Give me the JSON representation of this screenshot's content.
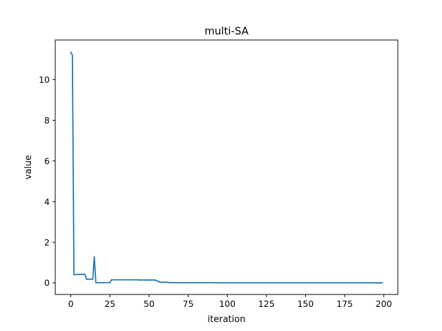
{
  "chart_data": {
    "type": "line",
    "title": "multi-SA",
    "xlabel": "iteration",
    "ylabel": "value",
    "xlim": [
      -9.95,
      208.95
    ],
    "ylim": [
      -0.57,
      11.95
    ],
    "xticks": [
      0,
      25,
      50,
      75,
      100,
      125,
      150,
      175,
      200
    ],
    "yticks": [
      0,
      2,
      4,
      6,
      8,
      10
    ],
    "grid": false,
    "legend": "none",
    "series": [
      {
        "color": "#1f77b4",
        "x": [
          0,
          1,
          2,
          3,
          4,
          5,
          6,
          7,
          8,
          9,
          10,
          11,
          12,
          13,
          14,
          15,
          16,
          17,
          18,
          19,
          20,
          21,
          22,
          23,
          24,
          25,
          26,
          27,
          28,
          30,
          35,
          40,
          42,
          44,
          46,
          50,
          54,
          55,
          56,
          57,
          58,
          60,
          62,
          63,
          64,
          70,
          80,
          90,
          94,
          100,
          120,
          150,
          175,
          199
        ],
        "y": [
          11.35,
          11.2,
          0.4,
          0.4,
          0.42,
          0.42,
          0.42,
          0.42,
          0.42,
          0.42,
          0.18,
          0.18,
          0.18,
          0.18,
          0.18,
          1.28,
          0.01,
          0.01,
          0.01,
          0.01,
          0.01,
          0.01,
          0.01,
          0.01,
          0.01,
          0.01,
          0.15,
          0.15,
          0.15,
          0.15,
          0.15,
          0.15,
          0.15,
          0.14,
          0.14,
          0.14,
          0.14,
          0.1,
          0.07,
          0.03,
          0.03,
          0.03,
          0.03,
          0.01,
          0.01,
          0.01,
          0.01,
          0.01,
          0.0,
          0.0,
          0.0,
          0.0,
          0.0,
          0.0
        ]
      }
    ]
  }
}
